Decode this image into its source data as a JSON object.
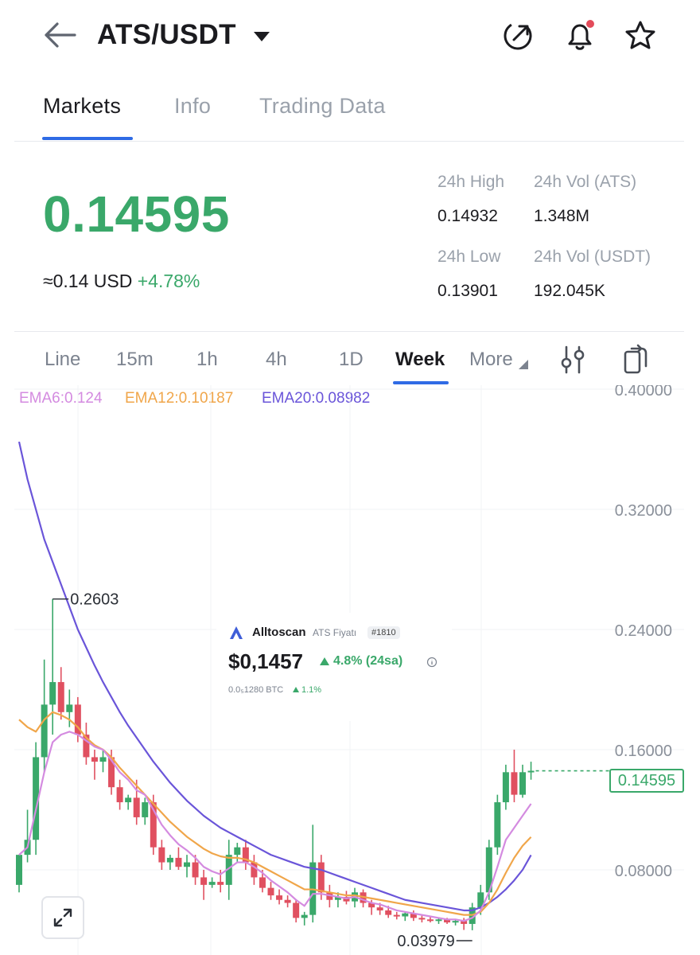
{
  "header": {
    "pair": "ATS/USDT",
    "icons": [
      "back-arrow-icon",
      "caret-down-icon",
      "share-icon",
      "bell-icon",
      "star-icon"
    ]
  },
  "tabs": [
    {
      "label": "Markets",
      "active": true
    },
    {
      "label": "Info",
      "active": false
    },
    {
      "label": "Trading Data",
      "active": false
    }
  ],
  "ticker": {
    "last_price": "0.14595",
    "usd_approx": "≈0.14  USD",
    "change": "+4.78%",
    "high_label": "24h High",
    "high": "0.14932",
    "low_label": "24h Low",
    "low": "0.13901",
    "vol_ats_label": "24h Vol (ATS)",
    "vol_ats": "1.348M",
    "vol_usdt_label": "24h Vol  (USDT)",
    "vol_usdt": "192.045K",
    "up_color": "#3aa86a"
  },
  "intervals": [
    {
      "label": "Line",
      "active": false
    },
    {
      "label": "15m",
      "active": false
    },
    {
      "label": "1h",
      "active": false
    },
    {
      "label": "4h",
      "active": false
    },
    {
      "label": "1D",
      "active": false
    },
    {
      "label": "Week",
      "active": true
    },
    {
      "label": "More",
      "active": false
    }
  ],
  "indicators": {
    "ema6": "EMA6:0.124",
    "ema12": "EMA12:0.10187",
    "ema20": "EMA20:0.08982",
    "ema6_color": "#d48be0",
    "ema12_color": "#f0a64a",
    "ema20_color": "#6a55d9"
  },
  "chart_data": {
    "type": "candlestick",
    "y_ticks": [
      "0.40000",
      "0.32000",
      "0.24000",
      "0.16000",
      "0.08000"
    ],
    "ylim": [
      0.04,
      0.4
    ],
    "last_price": "0.14595",
    "high_marker": "0.2603",
    "low_marker": "0.03979",
    "up_color": "#3aa86a",
    "down_color": "#e05060",
    "candles": [
      [
        0.07,
        0.065,
        0.085,
        0.09
      ],
      [
        0.09,
        0.085,
        0.12,
        0.1
      ],
      [
        0.1,
        0.09,
        0.165,
        0.155
      ],
      [
        0.155,
        0.145,
        0.22,
        0.19
      ],
      [
        0.19,
        0.17,
        0.2603,
        0.205
      ],
      [
        0.205,
        0.18,
        0.215,
        0.185
      ],
      [
        0.185,
        0.175,
        0.2,
        0.19
      ],
      [
        0.19,
        0.165,
        0.195,
        0.17
      ],
      [
        0.17,
        0.15,
        0.178,
        0.155
      ],
      [
        0.155,
        0.14,
        0.16,
        0.152
      ],
      [
        0.152,
        0.145,
        0.16,
        0.155
      ],
      [
        0.155,
        0.13,
        0.16,
        0.135
      ],
      [
        0.135,
        0.12,
        0.14,
        0.125
      ],
      [
        0.125,
        0.12,
        0.13,
        0.128
      ],
      [
        0.128,
        0.11,
        0.14,
        0.115
      ],
      [
        0.115,
        0.11,
        0.128,
        0.125
      ],
      [
        0.125,
        0.09,
        0.13,
        0.095
      ],
      [
        0.095,
        0.08,
        0.1,
        0.085
      ],
      [
        0.085,
        0.08,
        0.09,
        0.088
      ],
      [
        0.088,
        0.08,
        0.095,
        0.082
      ],
      [
        0.082,
        0.075,
        0.09,
        0.085
      ],
      [
        0.085,
        0.07,
        0.09,
        0.075
      ],
      [
        0.075,
        0.06,
        0.08,
        0.07
      ],
      [
        0.07,
        0.068,
        0.075,
        0.072
      ],
      [
        0.072,
        0.065,
        0.08,
        0.07
      ],
      [
        0.07,
        0.06,
        0.1,
        0.09
      ],
      [
        0.09,
        0.085,
        0.098,
        0.095
      ],
      [
        0.095,
        0.08,
        0.1,
        0.085
      ],
      [
        0.085,
        0.07,
        0.09,
        0.075
      ],
      [
        0.075,
        0.065,
        0.08,
        0.068
      ],
      [
        0.068,
        0.06,
        0.072,
        0.063
      ],
      [
        0.063,
        0.057,
        0.067,
        0.06
      ],
      [
        0.06,
        0.055,
        0.063,
        0.058
      ],
      [
        0.058,
        0.045,
        0.06,
        0.048
      ],
      [
        0.048,
        0.043,
        0.052,
        0.05
      ],
      [
        0.05,
        0.045,
        0.11,
        0.085
      ],
      [
        0.085,
        0.06,
        0.09,
        0.065
      ],
      [
        0.065,
        0.055,
        0.07,
        0.06
      ],
      [
        0.06,
        0.055,
        0.065,
        0.062
      ],
      [
        0.062,
        0.057,
        0.066,
        0.059
      ],
      [
        0.059,
        0.055,
        0.068,
        0.065
      ],
      [
        0.065,
        0.055,
        0.067,
        0.058
      ],
      [
        0.058,
        0.05,
        0.06,
        0.055
      ],
      [
        0.055,
        0.05,
        0.058,
        0.053
      ],
      [
        0.053,
        0.048,
        0.056,
        0.05
      ],
      [
        0.05,
        0.047,
        0.052,
        0.049
      ],
      [
        0.049,
        0.046,
        0.052,
        0.051
      ],
      [
        0.051,
        0.046,
        0.053,
        0.048
      ],
      [
        0.048,
        0.045,
        0.05,
        0.047
      ],
      [
        0.047,
        0.045,
        0.049,
        0.046
      ],
      [
        0.046,
        0.044,
        0.048,
        0.047
      ],
      [
        0.047,
        0.044,
        0.048,
        0.045
      ],
      [
        0.045,
        0.043,
        0.047,
        0.046
      ],
      [
        0.046,
        0.04,
        0.048,
        0.044
      ],
      [
        0.044,
        0.03979,
        0.058,
        0.055
      ],
      [
        0.055,
        0.05,
        0.07,
        0.065
      ],
      [
        0.065,
        0.06,
        0.1,
        0.095
      ],
      [
        0.095,
        0.09,
        0.13,
        0.125
      ],
      [
        0.125,
        0.12,
        0.15,
        0.145
      ],
      [
        0.145,
        0.125,
        0.16,
        0.13
      ],
      [
        0.13,
        0.128,
        0.15,
        0.145
      ],
      [
        0.145,
        0.14,
        0.152,
        0.14595
      ]
    ],
    "ema20": [
      0.365,
      0.34,
      0.32,
      0.3,
      0.285,
      0.27,
      0.255,
      0.24,
      0.228,
      0.216,
      0.205,
      0.195,
      0.185,
      0.176,
      0.168,
      0.16,
      0.152,
      0.145,
      0.138,
      0.132,
      0.126,
      0.121,
      0.116,
      0.112,
      0.108,
      0.105,
      0.102,
      0.099,
      0.096,
      0.093,
      0.09,
      0.088,
      0.086,
      0.084,
      0.082,
      0.081,
      0.08,
      0.078,
      0.076,
      0.074,
      0.072,
      0.07,
      0.068,
      0.066,
      0.064,
      0.062,
      0.06,
      0.059,
      0.058,
      0.057,
      0.056,
      0.055,
      0.054,
      0.053,
      0.053,
      0.055,
      0.058,
      0.062,
      0.067,
      0.073,
      0.08,
      0.08982
    ],
    "ema12": [
      0.18,
      0.175,
      0.172,
      0.18,
      0.185,
      0.183,
      0.18,
      0.175,
      0.168,
      0.163,
      0.16,
      0.155,
      0.148,
      0.142,
      0.136,
      0.13,
      0.124,
      0.118,
      0.112,
      0.107,
      0.102,
      0.098,
      0.094,
      0.091,
      0.089,
      0.088,
      0.088,
      0.087,
      0.085,
      0.082,
      0.079,
      0.076,
      0.073,
      0.07,
      0.067,
      0.067,
      0.066,
      0.065,
      0.064,
      0.063,
      0.063,
      0.062,
      0.061,
      0.06,
      0.059,
      0.058,
      0.057,
      0.056,
      0.055,
      0.054,
      0.053,
      0.052,
      0.051,
      0.05,
      0.05,
      0.052,
      0.058,
      0.067,
      0.078,
      0.088,
      0.096,
      0.10187
    ],
    "ema6": [
      0.09,
      0.095,
      0.12,
      0.145,
      0.165,
      0.17,
      0.172,
      0.17,
      0.166,
      0.162,
      0.16,
      0.153,
      0.145,
      0.14,
      0.133,
      0.13,
      0.12,
      0.11,
      0.103,
      0.097,
      0.093,
      0.088,
      0.082,
      0.079,
      0.077,
      0.081,
      0.085,
      0.085,
      0.082,
      0.078,
      0.073,
      0.069,
      0.065,
      0.06,
      0.056,
      0.064,
      0.064,
      0.063,
      0.062,
      0.061,
      0.062,
      0.06,
      0.058,
      0.057,
      0.055,
      0.053,
      0.052,
      0.051,
      0.05,
      0.049,
      0.048,
      0.047,
      0.047,
      0.046,
      0.048,
      0.053,
      0.065,
      0.082,
      0.1,
      0.108,
      0.116,
      0.124
    ]
  },
  "overlay": {
    "brand": "Alltoscan",
    "subtitle": "ATS Fiyatı",
    "rank": "#1810",
    "price": "$0,1457",
    "change": "4.8% (24sa)",
    "btc_price": "0.0₅1280 BTC",
    "btc_change": "1.1%"
  }
}
